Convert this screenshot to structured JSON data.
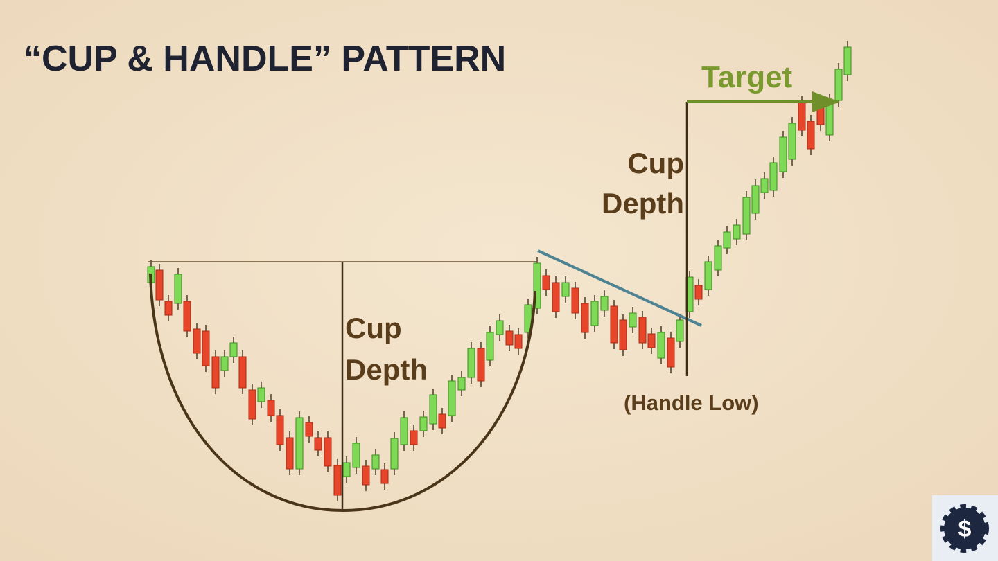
{
  "header": {
    "title": "“CUP & HANDLE” PATTERN"
  },
  "labels": {
    "target": "Target",
    "cup_depth_left": {
      "line1": "Cup",
      "line2": "Depth"
    },
    "cup_depth_right": {
      "line1": "Cup",
      "line2": "Depth"
    },
    "handle_low": "(Handle Low)"
  }
}
